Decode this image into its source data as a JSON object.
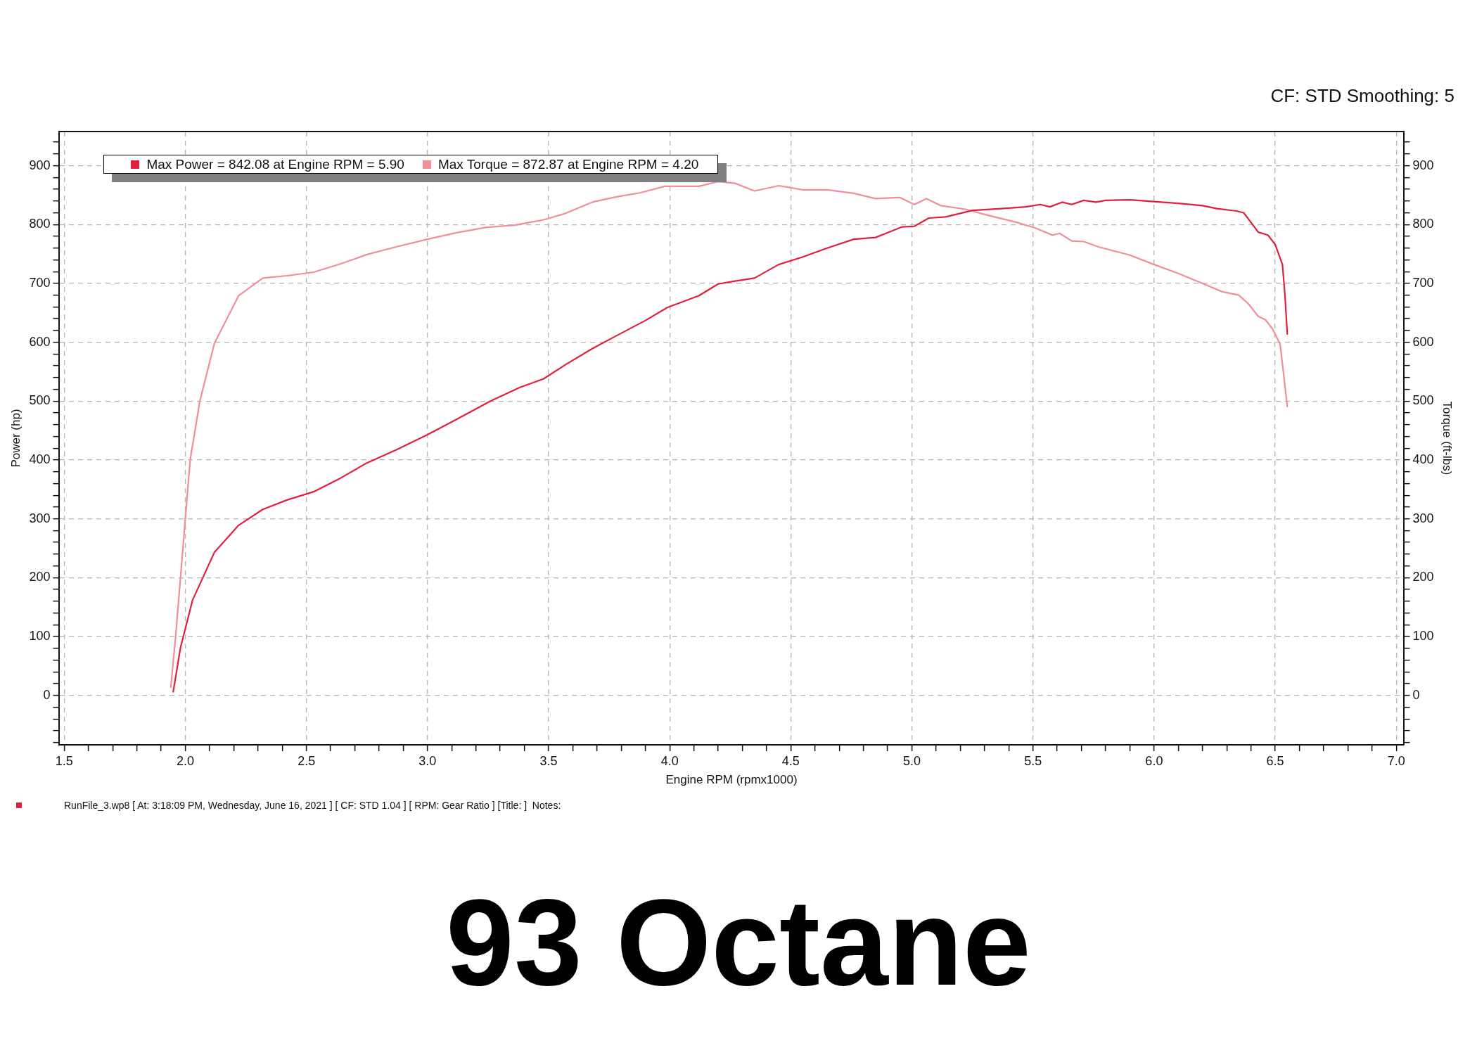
{
  "chart_data": {
    "type": "line",
    "title": "93 Octane",
    "subtitle": "CF: STD Smoothing: 5",
    "xlabel": "Engine RPM (rpmx1000)",
    "ylabel": "Power (hp)",
    "y2label": "Torque (ft-lbs)",
    "annotations": [
      "RunFile_3.wp8 [ At: 3:18:09 PM, Wednesday, June 16, 2021 ] [ CF: STD 1.04 ] [ RPM: Gear Ratio ] [Title: ]  Notes:"
    ],
    "series": [
      {
        "name": "Max Power = 842.08 at Engine RPM = 5.90",
        "color": "#e0203c",
        "axis": "y",
        "x": [
          1.95,
          1.98,
          2.03,
          2.12,
          2.22,
          2.32,
          2.42,
          2.53,
          2.64,
          2.75,
          2.87,
          3.0,
          3.12,
          3.26,
          3.38,
          3.48,
          3.57,
          3.68,
          3.78,
          3.9,
          3.99,
          4.12,
          4.2,
          4.27,
          4.35,
          4.45,
          4.55,
          4.65,
          4.76,
          4.85,
          4.96,
          5.01,
          5.07,
          5.14,
          5.25,
          5.37,
          5.47,
          5.53,
          5.57,
          5.62,
          5.66,
          5.71,
          5.76,
          5.8,
          5.9,
          6.0,
          6.1,
          6.2,
          6.26,
          6.34,
          6.37,
          6.39,
          6.43,
          6.47,
          6.5,
          6.53,
          6.54,
          6.55
        ],
        "values": [
          6,
          81,
          162,
          243,
          289,
          316,
          332,
          346,
          369,
          395,
          417,
          443,
          469,
          500,
          523,
          538,
          562,
          589,
          611,
          637,
          659,
          679,
          699,
          704,
          709,
          732,
          745,
          760,
          775,
          778,
          796,
          797,
          811,
          813,
          824,
          827,
          830,
          834,
          830,
          838,
          834,
          841,
          838,
          841,
          842,
          839,
          836,
          832,
          827,
          823,
          820,
          809,
          787,
          782,
          766,
          732,
          682,
          614
        ]
      },
      {
        "name": "Max Torque = 872.87 at Engine RPM = 4.20",
        "color": "#f28d9a",
        "axis": "y2",
        "x": [
          1.94,
          1.96,
          1.98,
          2.0,
          2.02,
          2.06,
          2.12,
          2.22,
          2.32,
          2.42,
          2.53,
          2.64,
          2.75,
          2.87,
          3.0,
          3.12,
          3.24,
          3.36,
          3.48,
          3.57,
          3.68,
          3.78,
          3.88,
          3.98,
          4.12,
          4.2,
          4.27,
          4.35,
          4.45,
          4.55,
          4.65,
          4.76,
          4.85,
          4.95,
          5.01,
          5.06,
          5.12,
          5.22,
          5.32,
          5.43,
          5.51,
          5.58,
          5.61,
          5.66,
          5.71,
          5.77,
          5.9,
          6.0,
          6.1,
          6.2,
          6.28,
          6.35,
          6.39,
          6.43,
          6.46,
          6.49,
          6.52,
          6.53,
          6.55
        ],
        "values": [
          14,
          100,
          200,
          300,
          400,
          500,
          598,
          679,
          709,
          713,
          719,
          733,
          749,
          762,
          775,
          786,
          795,
          799,
          808,
          819,
          838,
          847,
          854,
          865,
          865,
          873,
          870,
          857,
          866,
          859,
          859,
          853,
          844,
          846,
          834,
          844,
          832,
          826,
          815,
          804,
          794,
          782,
          785,
          772,
          771,
          762,
          748,
          732,
          717,
          700,
          686,
          680,
          665,
          644,
          638,
          622,
          597,
          563,
          491
        ]
      }
    ],
    "xlim": [
      1.48,
      7.03
    ],
    "xticks": [
      1.5,
      {
        "value": 1.6,
        "label": null
      },
      {
        "value": 1.7,
        "label": null
      },
      {
        "value": 1.8,
        "label": null
      },
      {
        "value": 1.9,
        "label": null
      },
      {
        "value": 2,
        "label": "2.0"
      },
      {
        "value": 2.1,
        "label": null
      },
      {
        "value": 2.2,
        "label": null
      },
      {
        "value": 2.3,
        "label": null
      },
      {
        "value": 2.4,
        "label": null
      },
      2.5,
      {
        "value": 2.6,
        "label": null
      },
      {
        "value": 2.7,
        "label": null
      },
      {
        "value": 2.8,
        "label": null
      },
      {
        "value": 2.9,
        "label": null
      },
      {
        "value": 3,
        "label": "3.0"
      },
      {
        "value": 3.1,
        "label": null
      },
      {
        "value": 3.2,
        "label": null
      },
      {
        "value": 3.3,
        "label": null
      },
      {
        "value": 3.4,
        "label": null
      },
      3.5,
      {
        "value": 3.6,
        "label": null
      },
      {
        "value": 3.7,
        "label": null
      },
      {
        "value": 3.8,
        "label": null
      },
      {
        "value": 3.9,
        "label": null
      },
      {
        "value": 4,
        "label": "4.0"
      },
      {
        "value": 4.1,
        "label": null
      },
      {
        "value": 4.2,
        "label": null
      },
      {
        "value": 4.3,
        "label": null
      },
      {
        "value": 4.4,
        "label": null
      },
      4.5,
      {
        "value": 4.6,
        "label": null
      },
      {
        "value": 4.7,
        "label": null
      },
      {
        "value": 4.8,
        "label": null
      },
      {
        "value": 4.9,
        "label": null
      },
      {
        "value": 5,
        "label": "5.0"
      },
      {
        "value": 5.1,
        "label": null
      },
      {
        "value": 5.2,
        "label": null
      },
      {
        "value": 5.3,
        "label": null
      },
      {
        "value": 5.4,
        "label": null
      },
      5.5,
      {
        "value": 5.6,
        "label": null
      },
      {
        "value": 5.7,
        "label": null
      },
      {
        "value": 5.8,
        "label": null
      },
      {
        "value": 5.9,
        "label": null
      },
      {
        "value": 6,
        "label": "6.0"
      },
      {
        "value": 6.1,
        "label": null
      },
      {
        "value": 6.2,
        "label": null
      },
      {
        "value": 6.3,
        "label": null
      },
      {
        "value": 6.4,
        "label": null
      },
      6.5,
      {
        "value": 6.6,
        "label": null
      },
      {
        "value": 6.7,
        "label": null
      },
      {
        "value": 6.8,
        "label": null
      },
      {
        "value": 6.9,
        "label": null
      },
      {
        "value": 7,
        "label": "7.0"
      }
    ],
    "ylim": [
      -84,
      958
    ],
    "yticks": [
      {
        "value": -80,
        "label": null
      },
      {
        "value": -60,
        "label": null
      },
      {
        "value": -40,
        "label": null
      },
      {
        "value": -20,
        "label": null
      },
      0,
      {
        "value": 20,
        "label": null
      },
      {
        "value": 40,
        "label": null
      },
      {
        "value": 60,
        "label": null
      },
      {
        "value": 80,
        "label": null
      },
      100,
      {
        "value": 120,
        "label": null
      },
      {
        "value": 140,
        "label": null
      },
      {
        "value": 160,
        "label": null
      },
      {
        "value": 180,
        "label": null
      },
      200,
      {
        "value": 220,
        "label": null
      },
      {
        "value": 240,
        "label": null
      },
      {
        "value": 260,
        "label": null
      },
      {
        "value": 280,
        "label": null
      },
      300,
      {
        "value": 320,
        "label": null
      },
      {
        "value": 340,
        "label": null
      },
      {
        "value": 360,
        "label": null
      },
      {
        "value": 380,
        "label": null
      },
      400,
      {
        "value": 420,
        "label": null
      },
      {
        "value": 440,
        "label": null
      },
      {
        "value": 460,
        "label": null
      },
      {
        "value": 480,
        "label": null
      },
      500,
      {
        "value": 520,
        "label": null
      },
      {
        "value": 540,
        "label": null
      },
      {
        "value": 560,
        "label": null
      },
      {
        "value": 580,
        "label": null
      },
      600,
      {
        "value": 620,
        "label": null
      },
      {
        "value": 640,
        "label": null
      },
      {
        "value": 660,
        "label": null
      },
      {
        "value": 680,
        "label": null
      },
      700,
      {
        "value": 720,
        "label": null
      },
      {
        "value": 740,
        "label": null
      },
      {
        "value": 760,
        "label": null
      },
      {
        "value": 780,
        "label": null
      },
      800,
      {
        "value": 820,
        "label": null
      },
      {
        "value": 840,
        "label": null
      },
      {
        "value": 860,
        "label": null
      },
      {
        "value": 880,
        "label": null
      },
      900,
      {
        "value": 920,
        "label": null
      },
      {
        "value": 940,
        "label": null
      }
    ],
    "y2lim": [
      -84,
      958
    ],
    "y2ticks": [
      {
        "value": -80,
        "label": null
      },
      {
        "value": -60,
        "label": null
      },
      {
        "value": -40,
        "label": null
      },
      {
        "value": -20,
        "label": null
      },
      0,
      {
        "value": 20,
        "label": null
      },
      {
        "value": 40,
        "label": null
      },
      {
        "value": 60,
        "label": null
      },
      {
        "value": 80,
        "label": null
      },
      100,
      {
        "value": 120,
        "label": null
      },
      {
        "value": 140,
        "label": null
      },
      {
        "value": 160,
        "label": null
      },
      {
        "value": 180,
        "label": null
      },
      200,
      {
        "value": 220,
        "label": null
      },
      {
        "value": 240,
        "label": null
      },
      {
        "value": 260,
        "label": null
      },
      {
        "value": 280,
        "label": null
      },
      300,
      {
        "value": 320,
        "label": null
      },
      {
        "value": 340,
        "label": null
      },
      {
        "value": 360,
        "label": null
      },
      {
        "value": 380,
        "label": null
      },
      400,
      {
        "value": 420,
        "label": null
      },
      {
        "value": 440,
        "label": null
      },
      {
        "value": 460,
        "label": null
      },
      {
        "value": 480,
        "label": null
      },
      500,
      {
        "value": 520,
        "label": null
      },
      {
        "value": 540,
        "label": null
      },
      {
        "value": 560,
        "label": null
      },
      {
        "value": 580,
        "label": null
      },
      600,
      {
        "value": 620,
        "label": null
      },
      {
        "value": 640,
        "label": null
      },
      {
        "value": 660,
        "label": null
      },
      {
        "value": 680,
        "label": null
      },
      700,
      {
        "value": 720,
        "label": null
      },
      {
        "value": 740,
        "label": null
      },
      {
        "value": 760,
        "label": null
      },
      {
        "value": 780,
        "label": null
      },
      800,
      {
        "value": 820,
        "label": null
      },
      {
        "value": 840,
        "label": null
      },
      {
        "value": 860,
        "label": null
      },
      {
        "value": 880,
        "label": null
      },
      900,
      {
        "value": 920,
        "label": null
      },
      {
        "value": 940,
        "label": null
      }
    ],
    "grid": true,
    "legend": "top left"
  }
}
